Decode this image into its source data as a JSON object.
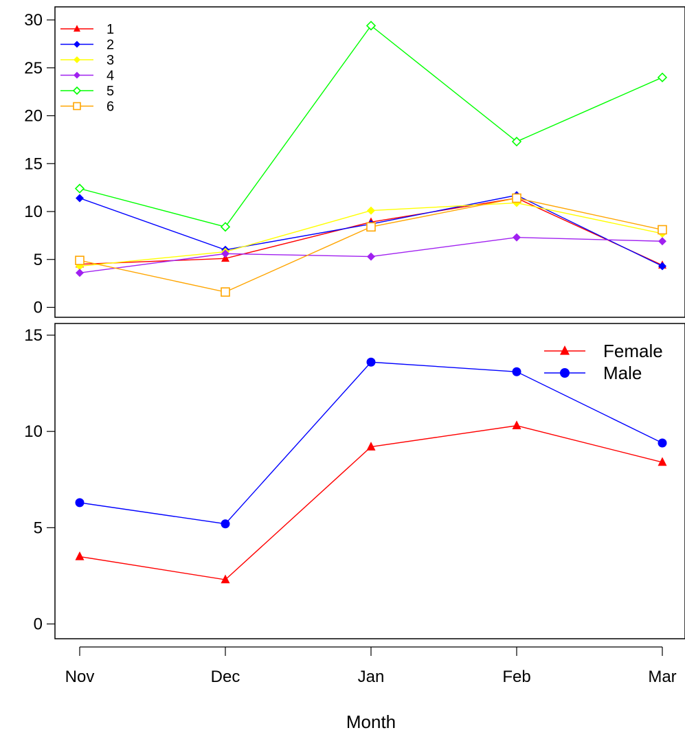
{
  "chart_data": [
    {
      "type": "line",
      "x": [
        "Nov",
        "Dec",
        "Jan",
        "Feb",
        "Mar"
      ],
      "ylim": [
        -1,
        31
      ],
      "yticks": [
        0,
        5,
        10,
        15,
        20,
        25,
        30
      ],
      "legend_position": "top-left",
      "series": [
        {
          "name": "1",
          "color": "#ff0000",
          "marker": "triangle",
          "values": [
            4.5,
            5.1,
            8.9,
            11.4,
            4.4
          ]
        },
        {
          "name": "2",
          "color": "#0000ff",
          "marker": "filled-diamond",
          "values": [
            11.4,
            6.0,
            8.7,
            11.7,
            4.3
          ]
        },
        {
          "name": "3",
          "color": "#ffff00",
          "marker": "filled-diamond",
          "values": [
            4.3,
            5.8,
            10.1,
            10.9,
            7.7
          ]
        },
        {
          "name": "4",
          "color": "#a020f0",
          "marker": "filled-diamond",
          "values": [
            3.6,
            5.6,
            5.3,
            7.3,
            6.9
          ]
        },
        {
          "name": "5",
          "color": "#00ff00",
          "marker": "open-diamond",
          "values": [
            12.4,
            8.4,
            29.4,
            17.3,
            24.0
          ]
        },
        {
          "name": "6",
          "color": "#ffa500",
          "marker": "open-square",
          "values": [
            4.9,
            1.6,
            8.4,
            11.4,
            8.1
          ]
        }
      ]
    },
    {
      "type": "line",
      "x": [
        "Nov",
        "Dec",
        "Jan",
        "Feb",
        "Mar"
      ],
      "ylim": [
        -0.5,
        16
      ],
      "yticks": [
        0,
        5,
        10,
        15
      ],
      "legend_position": "top-right",
      "xlabel": "Month",
      "series": [
        {
          "name": "Female",
          "color": "#ff0000",
          "marker": "triangle",
          "values": [
            3.5,
            2.3,
            9.2,
            10.3,
            8.4
          ]
        },
        {
          "name": "Male",
          "color": "#0000ff",
          "marker": "circle",
          "values": [
            6.3,
            5.2,
            13.6,
            13.1,
            9.4
          ]
        }
      ]
    }
  ]
}
